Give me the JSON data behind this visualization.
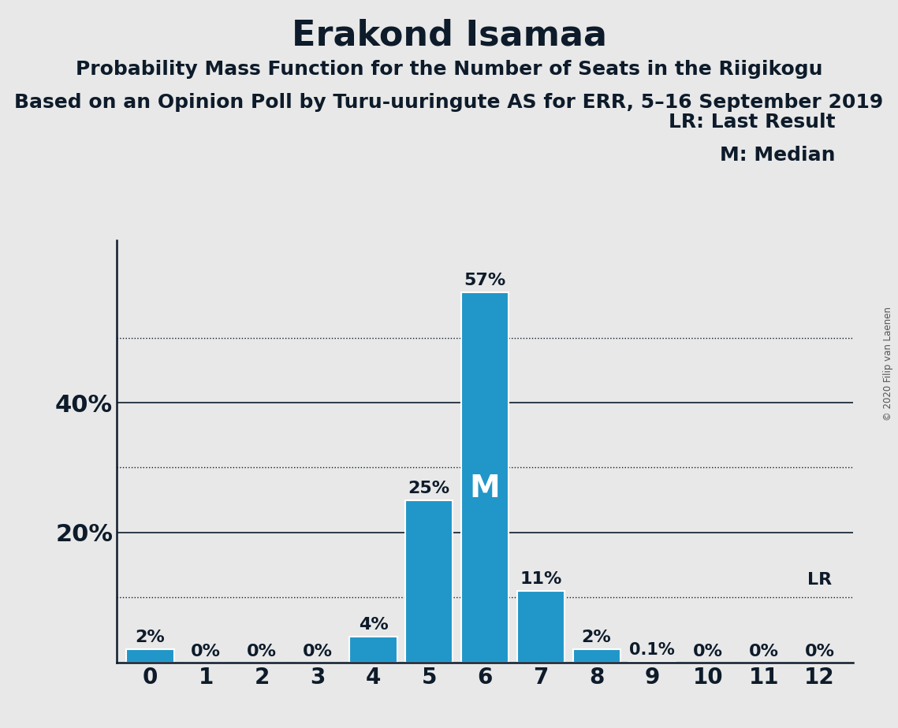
{
  "title": "Erakond Isamaa",
  "subtitle1": "Probability Mass Function for the Number of Seats in the Riigikogu",
  "subtitle2": "Based on an Opinion Poll by Turu-uuringute AS for ERR, 5–16 September 2019",
  "copyright": "© 2020 Filip van Laenen",
  "categories": [
    0,
    1,
    2,
    3,
    4,
    5,
    6,
    7,
    8,
    9,
    10,
    11,
    12
  ],
  "values": [
    0.02,
    0.0,
    0.0,
    0.0,
    0.04,
    0.25,
    0.57,
    0.11,
    0.02,
    0.001,
    0.0,
    0.0,
    0.0
  ],
  "labels": [
    "2%",
    "0%",
    "0%",
    "0%",
    "4%",
    "25%",
    "57%",
    "11%",
    "2%",
    "0.1%",
    "0%",
    "0%",
    "0%"
  ],
  "bar_color": "#2196C8",
  "median_bar": 6,
  "lr_bar": 12,
  "lr_label": "LR",
  "median_label": "M",
  "legend_lr": "LR: Last Result",
  "legend_m": "M: Median",
  "ylim": [
    0,
    0.65
  ],
  "solid_yticks": [
    0.2,
    0.4
  ],
  "dotted_yticks": [
    0.1,
    0.3,
    0.5
  ],
  "solid_ytick_labels": {
    "0.20": "20%",
    "0.40": "40%"
  },
  "background_color": "#E8E8E8",
  "bar_edge_color": "white",
  "axis_color": "#0d1b2a",
  "title_fontsize": 32,
  "subtitle_fontsize": 18,
  "label_fontsize": 16,
  "tick_fontsize": 20,
  "ytick_fontsize": 22,
  "median_fontsize": 28,
  "legend_fontsize": 18
}
